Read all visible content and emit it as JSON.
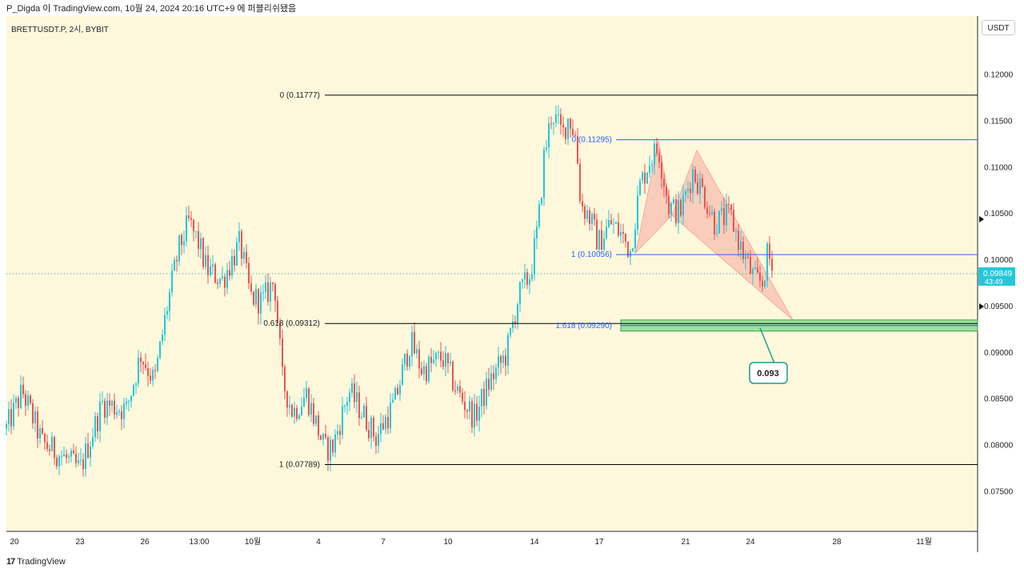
{
  "header": {
    "attribution": "P_Digda 이 TradingView.com, 10월 24, 2024 20:16 UTC+9 에 퍼블리쉬됐음"
  },
  "symbol": "BRETTUSDT.P, 2시, BYBIT",
  "currency": "USDT",
  "brand": {
    "logo": "17",
    "name": "TradingView"
  },
  "colors": {
    "background": "#fdf8dc",
    "up": "#26c6da",
    "down": "#ef5350",
    "fib_left": "#000000",
    "fib_right": "#2962ff",
    "target_zone": "#7fd88a",
    "pattern_fill": "#f8a9a0",
    "last_price_bg": "#26c6da",
    "annotation_border": "#1e9c8c"
  },
  "chart_data": {
    "type": "candlestick",
    "ylim": [
      0.072,
      0.123
    ],
    "price_axis_ticks": [
      "0.12000",
      "0.11500",
      "0.11000",
      "0.10500",
      "0.10000",
      "0.09500",
      "0.09000",
      "0.08500",
      "0.08000",
      "0.07500"
    ],
    "time_axis_ticks": [
      "20",
      "23",
      "26",
      "13:00",
      "10월",
      "4",
      "7",
      "10",
      "14",
      "17",
      "21",
      "24",
      "28",
      "11월"
    ],
    "last_price": {
      "value": "0.09849",
      "countdown": "43:49"
    },
    "waypoints": [
      [
        0,
        0.0818
      ],
      [
        20,
        0.0858
      ],
      [
        45,
        0.0802
      ],
      [
        70,
        0.0788
      ],
      [
        92,
        0.0773
      ],
      [
        120,
        0.0845
      ],
      [
        150,
        0.0838
      ],
      [
        168,
        0.0898
      ],
      [
        185,
        0.0868
      ],
      [
        200,
        0.0945
      ],
      [
        215,
        0.101
      ],
      [
        228,
        0.104
      ],
      [
        240,
        0.1018
      ],
      [
        250,
        0.099
      ],
      [
        270,
        0.0978
      ],
      [
        292,
        0.1018
      ],
      [
        305,
        0.096
      ],
      [
        320,
        0.0955
      ],
      [
        335,
        0.0978
      ],
      [
        345,
        0.087
      ],
      [
        358,
        0.0835
      ],
      [
        375,
        0.0855
      ],
      [
        398,
        0.0795
      ],
      [
        408,
        0.0798
      ],
      [
        428,
        0.0858
      ],
      [
        445,
        0.0835
      ],
      [
        462,
        0.0808
      ],
      [
        485,
        0.0845
      ],
      [
        505,
        0.0912
      ],
      [
        520,
        0.088
      ],
      [
        545,
        0.0895
      ],
      [
        565,
        0.0855
      ],
      [
        585,
        0.083
      ],
      [
        605,
        0.087
      ],
      [
        625,
        0.0898
      ],
      [
        640,
        0.096
      ],
      [
        655,
        0.0985
      ],
      [
        665,
        0.1038
      ],
      [
        672,
        0.111
      ],
      [
        682,
        0.116
      ],
      [
        695,
        0.1135
      ],
      [
        703,
        0.1155
      ],
      [
        712,
        0.113
      ],
      [
        718,
        0.106
      ],
      [
        728,
        0.1048
      ],
      [
        740,
        0.1018
      ],
      [
        755,
        0.104
      ],
      [
        768,
        0.1028
      ],
      [
        780,
        0.101
      ],
      [
        792,
        0.108
      ],
      [
        805,
        0.111
      ],
      [
        815,
        0.112
      ],
      [
        828,
        0.1058
      ],
      [
        842,
        0.105
      ],
      [
        858,
        0.1095
      ],
      [
        870,
        0.1075
      ],
      [
        885,
        0.104
      ],
      [
        905,
        0.1048
      ],
      [
        920,
        0.1008
      ],
      [
        935,
        0.0978
      ],
      [
        945,
        0.0975
      ],
      [
        952,
        0.1008
      ],
      [
        958,
        0.0985
      ]
    ],
    "fib_left": {
      "levels": [
        {
          "label": "0 (0.11777)",
          "value": 0.11777
        },
        {
          "label": "0.618 (0.09312)",
          "value": 0.09312
        },
        {
          "label": "1 (0.07789)",
          "value": 0.07789
        }
      ]
    },
    "fib_right": {
      "levels": [
        {
          "label": "0 (0.11295)",
          "value": 0.11295
        },
        {
          "label": "1 (0.10056)",
          "value": 0.10056
        },
        {
          "label": "1.618 (0.09290)",
          "value": 0.0929
        }
      ]
    },
    "target_zone": {
      "top": 0.0935,
      "bottom": 0.0923
    },
    "pattern_points": [
      {
        "t": 787,
        "price": 0.1008
      },
      {
        "t": 815,
        "price": 0.1128
      },
      {
        "t": 832,
        "price": 0.1048
      },
      {
        "t": 863,
        "price": 0.1118
      },
      {
        "t": 983,
        "price": 0.0935
      }
    ],
    "annotation": {
      "text": "0.093",
      "value": 0.093
    }
  }
}
